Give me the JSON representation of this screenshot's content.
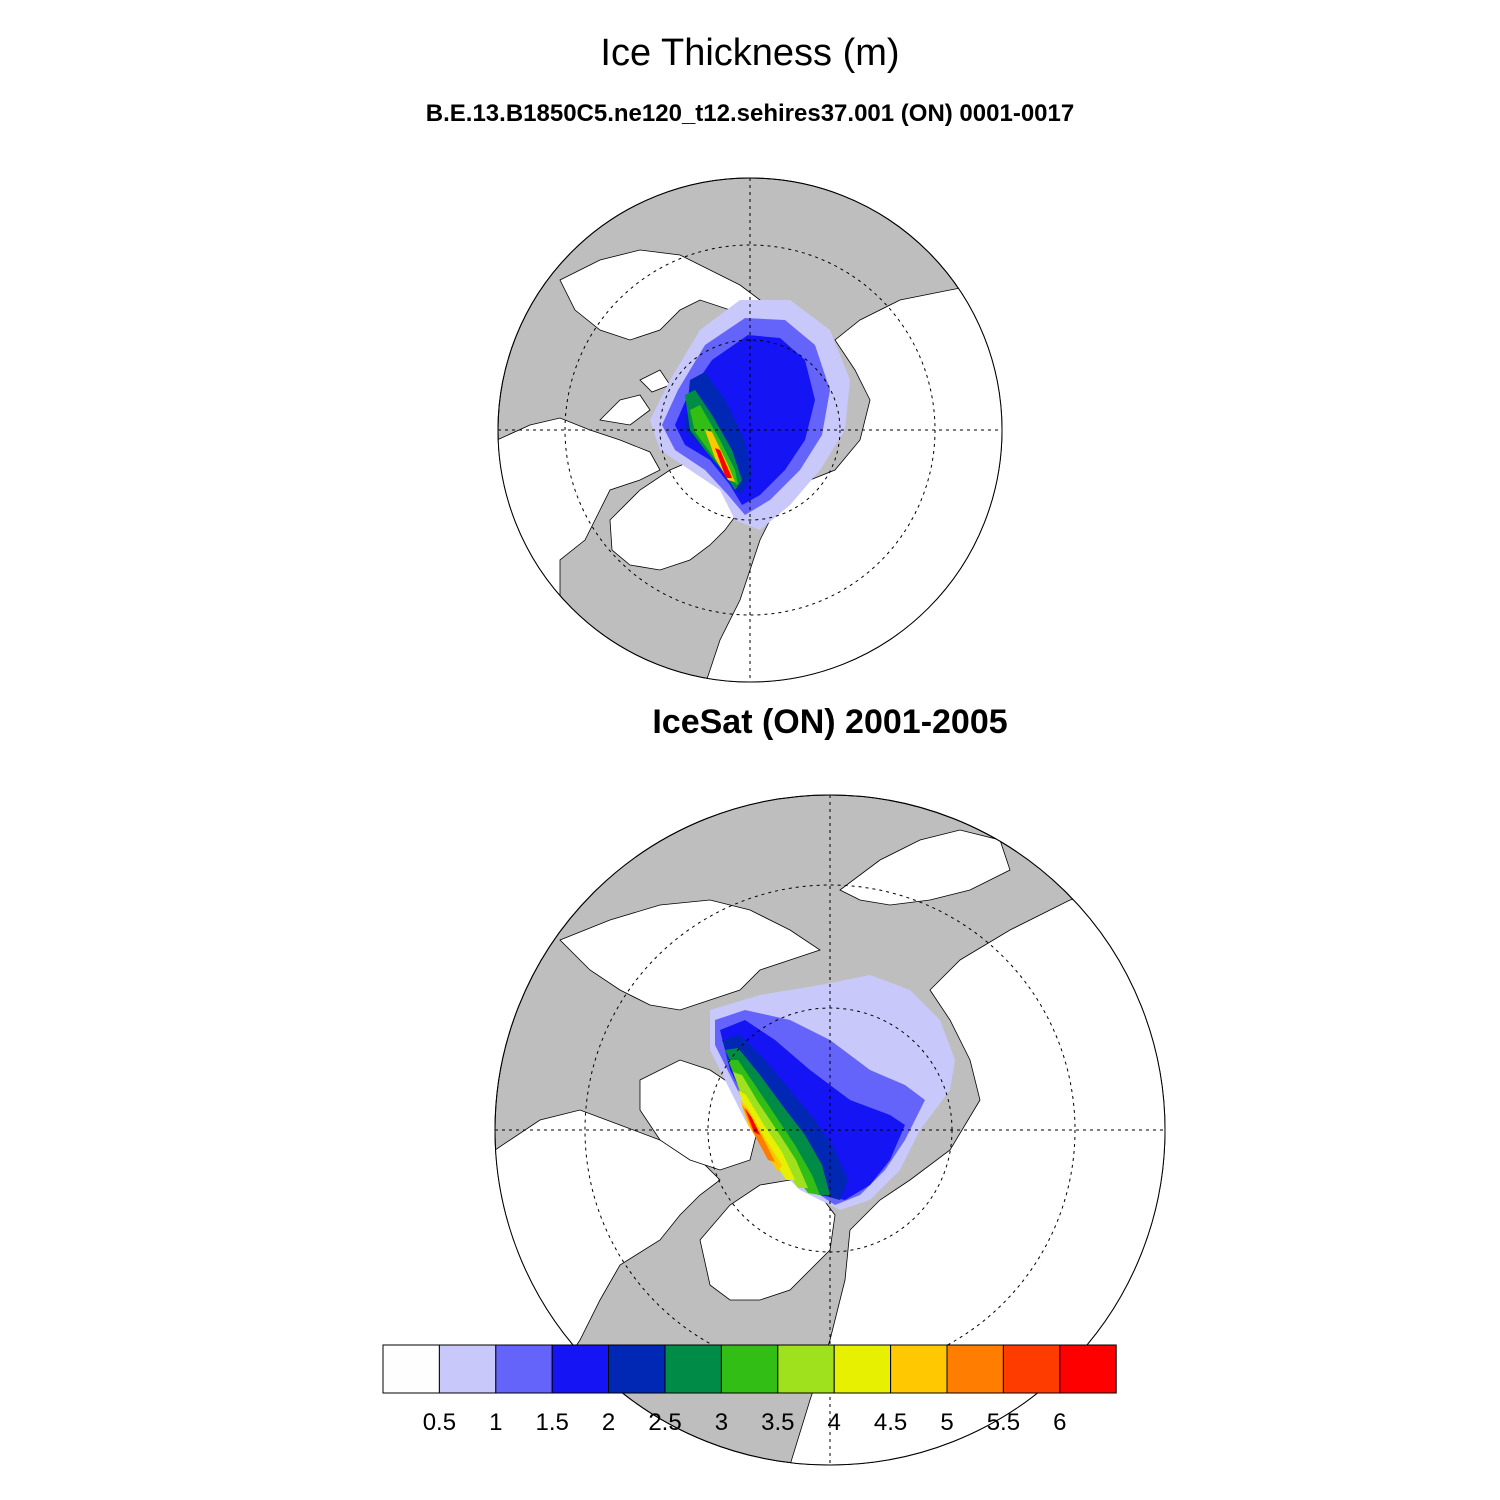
{
  "header": {
    "title": "Ice Thickness (m)",
    "subtitle": "B.E.13.B1850C5.ne120_t12.sehires37.001 (ON) 0001-0017"
  },
  "colors": {
    "ocean": "#bebebe",
    "land": "#ffffff",
    "grid": "#000000"
  },
  "chart_data": [
    {
      "type": "heatmap",
      "title": "",
      "projection": "north-polar-stereographic",
      "grid": true,
      "thickest_ice_region": "north of Greenland and the Canadian Arctic Archipelago",
      "value_range": [
        0,
        6.5
      ]
    },
    {
      "type": "heatmap",
      "title": "IceSat (ON) 2001-2005",
      "projection": "north-polar-stereographic",
      "grid": true,
      "thickest_ice_region": "north of Greenland and the Canadian Arctic Archipelago",
      "value_range": [
        0,
        6.5
      ]
    }
  ],
  "colorbar": {
    "levels": [
      "0.5",
      "1",
      "1.5",
      "2",
      "2.5",
      "3",
      "3.5",
      "4",
      "4.5",
      "5",
      "5.5",
      "6"
    ],
    "colors": [
      "#fefefe",
      "#c8c8fa",
      "#6464fa",
      "#1414f5",
      "#0028b4",
      "#008c46",
      "#32be14",
      "#a0e11e",
      "#e6f000",
      "#ffc800",
      "#ff7d00",
      "#ff3c00",
      "#ff0000"
    ]
  }
}
